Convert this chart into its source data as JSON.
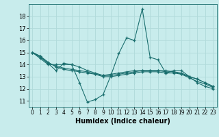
{
  "xlabel": "Humidex (Indice chaleur)",
  "background_color": "#c8ecec",
  "grid_color": "#b0dada",
  "line_color": "#1a6e6e",
  "xlim": [
    -0.5,
    23.5
  ],
  "ylim": [
    10.5,
    19.0
  ],
  "yticks": [
    11,
    12,
    13,
    14,
    15,
    16,
    17,
    18
  ],
  "xticks": [
    0,
    1,
    2,
    3,
    4,
    5,
    6,
    7,
    8,
    9,
    10,
    11,
    12,
    13,
    14,
    15,
    16,
    17,
    18,
    19,
    20,
    21,
    22,
    23
  ],
  "series": [
    [
      15.0,
      14.7,
      14.1,
      13.5,
      14.1,
      14.0,
      12.5,
      10.9,
      11.1,
      11.5,
      13.1,
      14.9,
      16.2,
      16.0,
      18.6,
      14.6,
      14.4,
      13.3,
      13.5,
      13.5,
      13.0,
      12.5,
      12.2,
      12.0
    ],
    [
      15.0,
      14.5,
      14.0,
      14.0,
      14.0,
      14.0,
      13.8,
      13.5,
      13.3,
      13.1,
      13.1,
      13.2,
      13.3,
      13.4,
      13.5,
      13.5,
      13.5,
      13.5,
      13.4,
      13.2,
      13.0,
      12.8,
      12.5,
      12.2
    ],
    [
      15.0,
      14.7,
      14.2,
      13.8,
      13.6,
      13.5,
      13.4,
      13.3,
      13.2,
      13.1,
      13.2,
      13.3,
      13.4,
      13.5,
      13.5,
      13.5,
      13.5,
      13.4,
      13.4,
      13.3,
      13.0,
      12.8,
      12.5,
      12.2
    ],
    [
      15.0,
      14.6,
      14.1,
      13.9,
      13.7,
      13.6,
      13.5,
      13.4,
      13.2,
      13.0,
      13.0,
      13.1,
      13.2,
      13.3,
      13.4,
      13.4,
      13.4,
      13.3,
      13.3,
      13.2,
      12.9,
      12.6,
      12.4,
      12.1
    ]
  ]
}
